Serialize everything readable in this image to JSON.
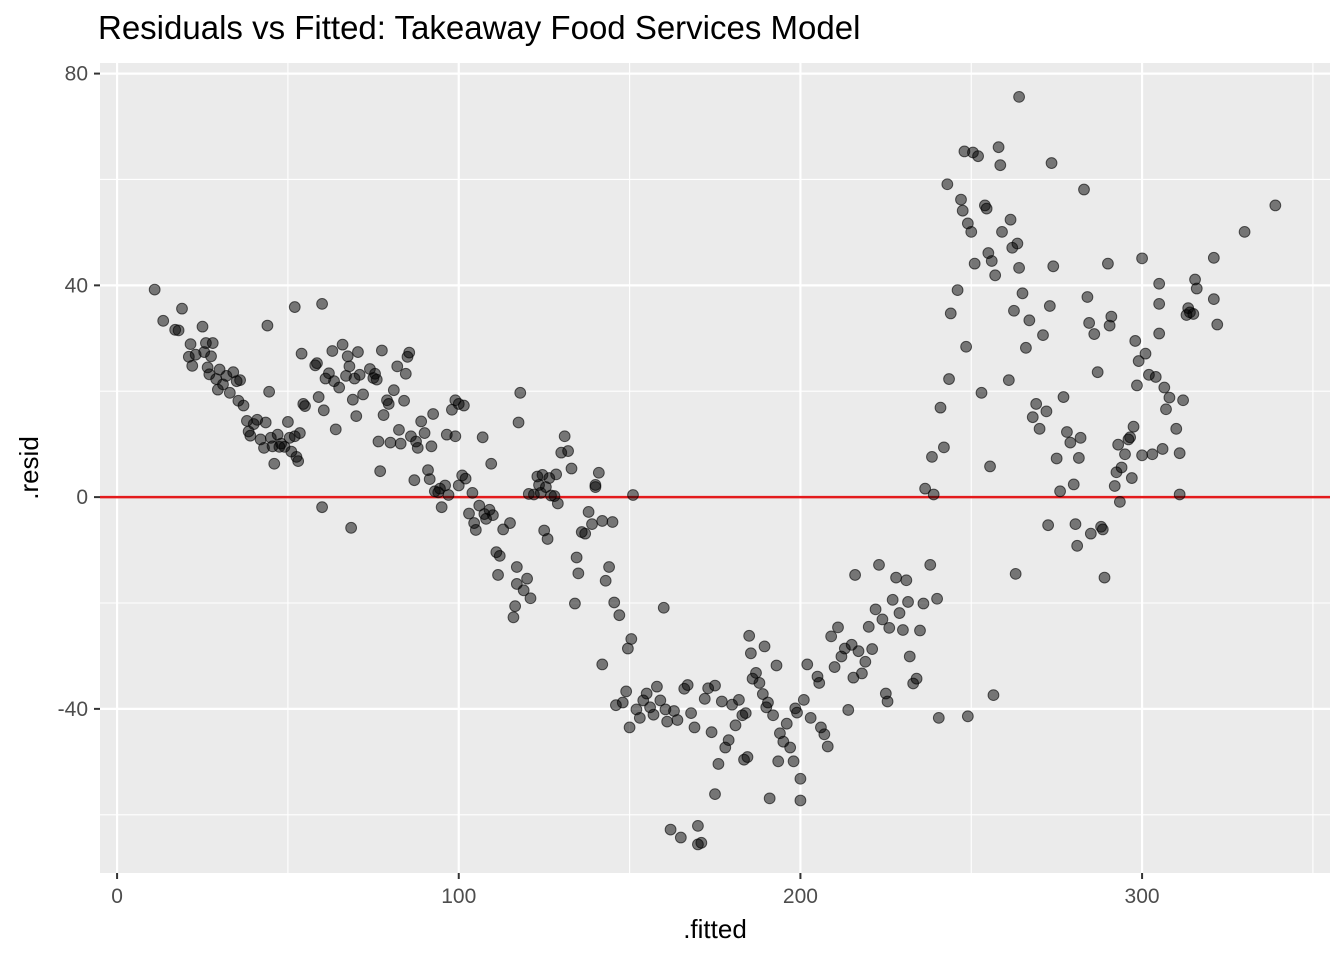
{
  "chart_data": {
    "type": "scatter",
    "title": "Residuals vs Fitted: Takeaway Food Services Model",
    "xlabel": ".fitted",
    "ylabel": ".resid",
    "xlim": [
      -5,
      355
    ],
    "ylim": [
      -71,
      82
    ],
    "x_ticks": [
      {
        "value": 0,
        "label": "0"
      },
      {
        "value": 100,
        "label": "100"
      },
      {
        "value": 200,
        "label": "200"
      },
      {
        "value": 300,
        "label": "300"
      }
    ],
    "y_ticks": [
      {
        "value": -40,
        "label": "-40"
      },
      {
        "value": 0,
        "label": "0"
      },
      {
        "value": 40,
        "label": "40"
      },
      {
        "value": 80,
        "label": "80"
      }
    ],
    "reference_line": {
      "y": 0,
      "color": "#e31a1c"
    },
    "colors": {
      "panel_background": "#ebebeb",
      "grid_major": "#ffffff",
      "points": "#000000",
      "point_opacity": 0.5
    },
    "grid": true,
    "legend": "none",
    "points": [
      [
        11,
        39.2
      ],
      [
        13.5,
        33.3
      ],
      [
        17,
        31.6
      ],
      [
        18,
        31.5
      ],
      [
        19,
        35.6
      ],
      [
        21,
        26.5
      ],
      [
        21.5,
        28.9
      ],
      [
        22,
        24.8
      ],
      [
        23,
        26.9
      ],
      [
        25,
        32.2
      ],
      [
        25.5,
        27.4
      ],
      [
        26,
        29.1
      ],
      [
        26.5,
        24.5
      ],
      [
        27,
        23.2
      ],
      [
        27.5,
        26.6
      ],
      [
        28,
        29.1
      ],
      [
        29,
        22.3
      ],
      [
        29.5,
        20.3
      ],
      [
        30,
        24.1
      ],
      [
        31,
        21.3
      ],
      [
        32,
        22.9
      ],
      [
        33,
        19.7
      ],
      [
        34,
        23.6
      ],
      [
        35,
        21.9
      ],
      [
        35.5,
        18.2
      ],
      [
        36,
        22.1
      ],
      [
        37,
        17.3
      ],
      [
        38,
        14.4
      ],
      [
        38.5,
        12.4
      ],
      [
        39,
        11.6
      ],
      [
        40,
        13.8
      ],
      [
        41,
        14.6
      ],
      [
        42,
        10.9
      ],
      [
        43,
        9.3
      ],
      [
        43.5,
        14.1
      ],
      [
        44,
        32.4
      ],
      [
        44.5,
        19.9
      ],
      [
        45,
        11.2
      ],
      [
        45.5,
        9.6
      ],
      [
        46,
        6.3
      ],
      [
        47,
        11.8
      ],
      [
        47.5,
        9.5
      ],
      [
        48,
        10.1
      ],
      [
        49,
        9.5
      ],
      [
        50,
        14.2
      ],
      [
        50.5,
        11.2
      ],
      [
        51,
        8.6
      ],
      [
        52,
        11.5
      ],
      [
        52,
        35.9
      ],
      [
        52.5,
        7.6
      ],
      [
        53,
        6.8
      ],
      [
        53.5,
        12.1
      ],
      [
        54,
        27.1
      ],
      [
        54.5,
        17.6
      ],
      [
        55,
        17.2
      ],
      [
        58,
        24.9
      ],
      [
        58.5,
        25.3
      ],
      [
        59,
        18.9
      ],
      [
        60,
        36.5
      ],
      [
        60,
        -1.9
      ],
      [
        60.5,
        16.4
      ],
      [
        61,
        22.4
      ],
      [
        62,
        23.4
      ],
      [
        63,
        27.6
      ],
      [
        63.5,
        21.9
      ],
      [
        64,
        12.8
      ],
      [
        65,
        20.7
      ],
      [
        66,
        28.8
      ],
      [
        67,
        22.9
      ],
      [
        67.5,
        26.6
      ],
      [
        68,
        24.7
      ],
      [
        68.5,
        -5.8
      ],
      [
        69,
        18.4
      ],
      [
        69.5,
        22.4
      ],
      [
        70,
        15.3
      ],
      [
        70.5,
        27.4
      ],
      [
        71,
        23.1
      ],
      [
        72,
        19.4
      ],
      [
        74,
        24.2
      ],
      [
        75,
        22.5
      ],
      [
        75.5,
        23.3
      ],
      [
        76,
        22.2
      ],
      [
        76.5,
        10.5
      ],
      [
        77,
        4.9
      ],
      [
        77.5,
        27.7
      ],
      [
        78,
        15.5
      ],
      [
        79,
        18.3
      ],
      [
        79.5,
        17.6
      ],
      [
        80,
        10.3
      ],
      [
        81,
        20.2
      ],
      [
        82,
        24.7
      ],
      [
        82.5,
        12.7
      ],
      [
        83,
        10.1
      ],
      [
        84,
        18.2
      ],
      [
        84.5,
        23.3
      ],
      [
        85,
        26.5
      ],
      [
        85.5,
        27.3
      ],
      [
        86,
        11.5
      ],
      [
        87,
        3.2
      ],
      [
        87.5,
        10.5
      ],
      [
        88,
        9.3
      ],
      [
        89,
        14.3
      ],
      [
        90,
        12.1
      ],
      [
        91,
        5.1
      ],
      [
        91.5,
        3.4
      ],
      [
        92,
        9.6
      ],
      [
        92.5,
        15.7
      ],
      [
        93,
        1.1
      ],
      [
        94,
        0.9
      ],
      [
        94.5,
        1.6
      ],
      [
        95,
        -1.9
      ],
      [
        96,
        2.2
      ],
      [
        96.5,
        11.8
      ],
      [
        97,
        0.4
      ],
      [
        98,
        16.5
      ],
      [
        99,
        11.5
      ],
      [
        99,
        18.3
      ],
      [
        100,
        17.6
      ],
      [
        100,
        2.2
      ],
      [
        101,
        4.1
      ],
      [
        101.5,
        17.3
      ],
      [
        102,
        3.5
      ],
      [
        103,
        -3.1
      ],
      [
        104,
        0.8
      ],
      [
        104.5,
        -4.9
      ],
      [
        105,
        -6.2
      ],
      [
        106,
        -1.6
      ],
      [
        107,
        11.3
      ],
      [
        107.5,
        -3.2
      ],
      [
        108,
        -4.1
      ],
      [
        109,
        -2.4
      ],
      [
        109.5,
        6.3
      ],
      [
        110,
        -3.4
      ],
      [
        111,
        -10.4
      ],
      [
        111.5,
        -14.7
      ],
      [
        112,
        -11.1
      ],
      [
        113,
        -6.1
      ],
      [
        115,
        -4.9
      ],
      [
        116,
        -22.7
      ],
      [
        116.5,
        -20.6
      ],
      [
        117,
        -16.4
      ],
      [
        117,
        -13.2
      ],
      [
        117.5,
        14.1
      ],
      [
        118,
        19.7
      ],
      [
        119,
        -17.6
      ],
      [
        120,
        -15.4
      ],
      [
        120.5,
        0.6
      ],
      [
        121,
        -19.1
      ],
      [
        122,
        0.5
      ],
      [
        123,
        3.9
      ],
      [
        123.5,
        2.3
      ],
      [
        124,
        0.8
      ],
      [
        124.5,
        4.2
      ],
      [
        125,
        -6.3
      ],
      [
        125.5,
        1.9
      ],
      [
        126,
        -7.9
      ],
      [
        126.5,
        3.6
      ],
      [
        127,
        0.3
      ],
      [
        128,
        0.2
      ],
      [
        128.5,
        4.3
      ],
      [
        129,
        -1.2
      ],
      [
        130,
        8.4
      ],
      [
        131,
        11.5
      ],
      [
        132,
        8.7
      ],
      [
        133,
        5.4
      ],
      [
        134,
        -20.1
      ],
      [
        134.5,
        -11.4
      ],
      [
        135,
        -14.4
      ],
      [
        136,
        -6.6
      ],
      [
        137,
        -6.9
      ],
      [
        138,
        -2.8
      ],
      [
        139,
        -5.1
      ],
      [
        140,
        1.9
      ],
      [
        140,
        2.3
      ],
      [
        141,
        4.6
      ],
      [
        142,
        -4.5
      ],
      [
        142,
        -31.6
      ],
      [
        143,
        -15.8
      ],
      [
        144,
        -13.2
      ],
      [
        145,
        -4.7
      ],
      [
        145.5,
        -19.9
      ],
      [
        146,
        -39.3
      ],
      [
        147,
        -22.3
      ],
      [
        148,
        -38.8
      ],
      [
        149,
        -36.7
      ],
      [
        149.5,
        -28.6
      ],
      [
        150,
        -43.5
      ],
      [
        150.5,
        -26.8
      ],
      [
        151,
        0.4
      ],
      [
        152,
        -40.1
      ],
      [
        153,
        -41.7
      ],
      [
        154,
        -38.4
      ],
      [
        155,
        -37.1
      ],
      [
        156,
        -39.7
      ],
      [
        157,
        -41.1
      ],
      [
        158,
        -35.8
      ],
      [
        159,
        -38.4
      ],
      [
        160,
        -20.9
      ],
      [
        160.5,
        -40.1
      ],
      [
        161,
        -42.4
      ],
      [
        162,
        -62.8
      ],
      [
        163,
        -40.4
      ],
      [
        164,
        -42.1
      ],
      [
        165,
        -64.3
      ],
      [
        166,
        -36.2
      ],
      [
        167,
        -35.5
      ],
      [
        168,
        -40.8
      ],
      [
        169,
        -43.5
      ],
      [
        170,
        -62.1
      ],
      [
        170,
        -65.6
      ],
      [
        171,
        -65.3
      ],
      [
        172,
        -38.1
      ],
      [
        173,
        -36.1
      ],
      [
        174,
        -44.4
      ],
      [
        175,
        -35.6
      ],
      [
        175,
        -56.1
      ],
      [
        176,
        -50.4
      ],
      [
        177,
        -38.6
      ],
      [
        178,
        -47.3
      ],
      [
        179,
        -45.9
      ],
      [
        180,
        -39.2
      ],
      [
        181,
        -43.1
      ],
      [
        182,
        -38.3
      ],
      [
        183,
        -41.2
      ],
      [
        183.5,
        -49.6
      ],
      [
        184,
        -40.8
      ],
      [
        184.5,
        -49.1
      ],
      [
        185,
        -26.2
      ],
      [
        185.5,
        -29.5
      ],
      [
        186,
        -34.3
      ],
      [
        187,
        -33.2
      ],
      [
        188,
        -35.1
      ],
      [
        189,
        -37.2
      ],
      [
        189.5,
        -28.2
      ],
      [
        190,
        -39.7
      ],
      [
        190.5,
        -38.8
      ],
      [
        191,
        -56.9
      ],
      [
        192,
        -41.2
      ],
      [
        193,
        -31.8
      ],
      [
        193.5,
        -49.9
      ],
      [
        194,
        -44.6
      ],
      [
        195,
        -46.2
      ],
      [
        196,
        -42.8
      ],
      [
        197,
        -47.3
      ],
      [
        198,
        -49.9
      ],
      [
        198.5,
        -39.9
      ],
      [
        199,
        -40.7
      ],
      [
        200,
        -57.3
      ],
      [
        200,
        -53.2
      ],
      [
        201,
        -38.3
      ],
      [
        202,
        -31.6
      ],
      [
        203,
        -41.7
      ],
      [
        205,
        -33.9
      ],
      [
        205.5,
        -35.1
      ],
      [
        206,
        -43.5
      ],
      [
        207,
        -44.8
      ],
      [
        208,
        -47.1
      ],
      [
        209,
        -26.3
      ],
      [
        210,
        -32.1
      ],
      [
        211,
        -24.6
      ],
      [
        212,
        -30.1
      ],
      [
        213,
        -28.6
      ],
      [
        214,
        -40.2
      ],
      [
        215,
        -27.9
      ],
      [
        215.5,
        -34.1
      ],
      [
        216,
        -14.7
      ],
      [
        217,
        -29.1
      ],
      [
        218,
        -33.3
      ],
      [
        219,
        -31.1
      ],
      [
        220,
        -24.5
      ],
      [
        221,
        -28.7
      ],
      [
        222,
        -21.2
      ],
      [
        223,
        -12.8
      ],
      [
        224,
        -23.1
      ],
      [
        225,
        -37.1
      ],
      [
        225.5,
        -38.6
      ],
      [
        226,
        -24.7
      ],
      [
        227,
        -19.4
      ],
      [
        228,
        -15.2
      ],
      [
        229,
        -21.9
      ],
      [
        230,
        -25.1
      ],
      [
        231,
        -15.7
      ],
      [
        231.5,
        -19.8
      ],
      [
        232,
        -30.1
      ],
      [
        233,
        -35.2
      ],
      [
        234,
        -34.3
      ],
      [
        235,
        -25.2
      ],
      [
        236,
        -20.1
      ],
      [
        236.5,
        1.6
      ],
      [
        238,
        -12.8
      ],
      [
        238.5,
        7.6
      ],
      [
        239,
        0.5
      ],
      [
        240,
        -19.2
      ],
      [
        240.5,
        -41.7
      ],
      [
        241,
        16.9
      ],
      [
        242,
        9.4
      ],
      [
        243,
        59.1
      ],
      [
        243.5,
        22.3
      ],
      [
        244,
        34.7
      ],
      [
        246,
        39.1
      ],
      [
        247,
        56.2
      ],
      [
        247.5,
        54.1
      ],
      [
        248,
        65.3
      ],
      [
        248.5,
        28.4
      ],
      [
        249,
        51.7
      ],
      [
        249,
        -41.4
      ],
      [
        250,
        50.1
      ],
      [
        250.5,
        65.1
      ],
      [
        251,
        44.1
      ],
      [
        252,
        64.4
      ],
      [
        253,
        19.7
      ],
      [
        254,
        55.1
      ],
      [
        254.5,
        54.5
      ],
      [
        255,
        46.1
      ],
      [
        255.5,
        5.8
      ],
      [
        256,
        44.6
      ],
      [
        256.5,
        -37.4
      ],
      [
        257,
        41.9
      ],
      [
        258,
        66.1
      ],
      [
        258.5,
        62.7
      ],
      [
        259,
        50.1
      ],
      [
        261,
        22.1
      ],
      [
        261.5,
        52.4
      ],
      [
        262,
        47.1
      ],
      [
        262.5,
        35.2
      ],
      [
        263,
        -14.5
      ],
      [
        263.5,
        47.9
      ],
      [
        264,
        75.6
      ],
      [
        264,
        43.3
      ],
      [
        265,
        38.5
      ],
      [
        266,
        28.2
      ],
      [
        267,
        33.4
      ],
      [
        268,
        15.1
      ],
      [
        269,
        17.6
      ],
      [
        270,
        12.9
      ],
      [
        271,
        30.6
      ],
      [
        272,
        16.2
      ],
      [
        272.5,
        -5.3
      ],
      [
        273,
        36.1
      ],
      [
        273.5,
        63.1
      ],
      [
        274,
        43.6
      ],
      [
        275,
        7.3
      ],
      [
        276,
        1.1
      ],
      [
        277,
        18.9
      ],
      [
        278,
        12.3
      ],
      [
        279,
        10.3
      ],
      [
        280,
        2.4
      ],
      [
        280.5,
        -5.1
      ],
      [
        281,
        -9.2
      ],
      [
        281.5,
        7.4
      ],
      [
        282,
        11.2
      ],
      [
        283,
        58.1
      ],
      [
        284,
        37.8
      ],
      [
        284.5,
        32.9
      ],
      [
        285,
        -6.9
      ],
      [
        286,
        30.8
      ],
      [
        287,
        23.6
      ],
      [
        288,
        -5.6
      ],
      [
        288.5,
        -6.1
      ],
      [
        289,
        -15.2
      ],
      [
        290,
        44.1
      ],
      [
        290.5,
        32.4
      ],
      [
        291,
        34.1
      ],
      [
        292,
        2.1
      ],
      [
        292.5,
        4.7
      ],
      [
        293,
        9.9
      ],
      [
        293.5,
        -0.9
      ],
      [
        294,
        5.6
      ],
      [
        295,
        8.1
      ],
      [
        296,
        10.9
      ],
      [
        296.5,
        11.3
      ],
      [
        297,
        3.6
      ],
      [
        297.5,
        13.3
      ],
      [
        298,
        29.5
      ],
      [
        298.5,
        21.1
      ],
      [
        299,
        25.7
      ],
      [
        300,
        45.1
      ],
      [
        300,
        7.9
      ],
      [
        301,
        27.1
      ],
      [
        302,
        23.1
      ],
      [
        303,
        8.1
      ],
      [
        304,
        22.7
      ],
      [
        305,
        30.9
      ],
      [
        305,
        36.5
      ],
      [
        305,
        40.3
      ],
      [
        306,
        9.1
      ],
      [
        306.5,
        20.7
      ],
      [
        307,
        16.6
      ],
      [
        308,
        18.8
      ],
      [
        310,
        12.9
      ],
      [
        311,
        8.3
      ],
      [
        311,
        0.5
      ],
      [
        312,
        18.3
      ],
      [
        313,
        34.4
      ],
      [
        313.5,
        35.7
      ],
      [
        314,
        34.9
      ],
      [
        315,
        34.6
      ],
      [
        315.5,
        41.1
      ],
      [
        316,
        39.4
      ],
      [
        321,
        45.2
      ],
      [
        321,
        37.4
      ],
      [
        322,
        32.6
      ],
      [
        330,
        50.1
      ],
      [
        339,
        55.1
      ]
    ]
  }
}
